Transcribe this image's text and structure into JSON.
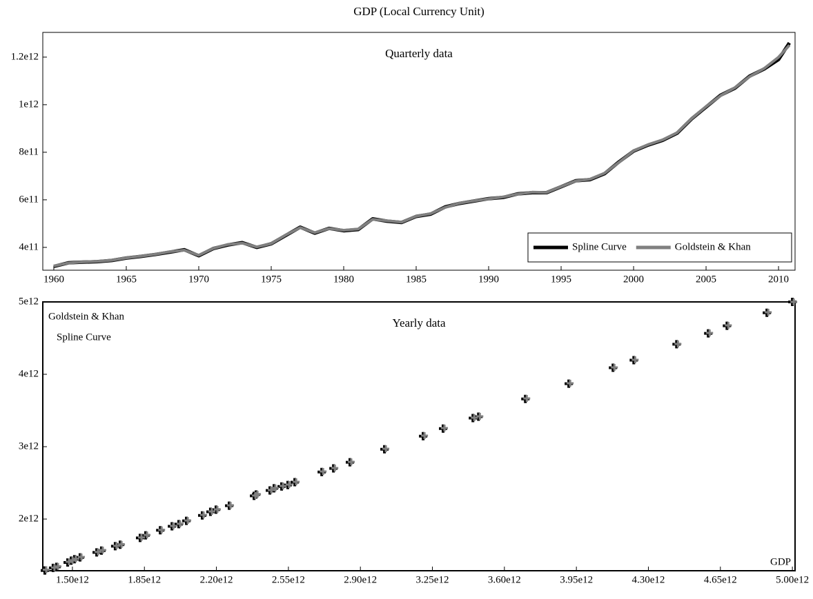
{
  "chart_data": [
    {
      "type": "line",
      "title": "GDP (Local Currency Unit)",
      "annotation": "Quarterly data",
      "x": [
        1960,
        1961,
        1962,
        1963,
        1964,
        1965,
        1966,
        1967,
        1968,
        1969,
        1970,
        1971,
        1972,
        1973,
        1974,
        1975,
        1976,
        1977,
        1978,
        1979,
        1980,
        1981,
        1982,
        1983,
        1984,
        1985,
        1986,
        1987,
        1988,
        1989,
        1990,
        1991,
        1992,
        1993,
        1994,
        1995,
        1996,
        1997,
        1998,
        1999,
        2000,
        2001,
        2002,
        2003,
        2004,
        2005,
        2006,
        2007,
        2008,
        2009,
        2010,
        2010.75
      ],
      "series": [
        {
          "name": "Spline Curve",
          "color": "#000000",
          "values": [
            320000000000.0,
            335000000000.0,
            338000000000.0,
            340000000000.0,
            345000000000.0,
            355000000000.0,
            362000000000.0,
            370000000000.0,
            380000000000.0,
            390000000000.0,
            365000000000.0,
            395000000000.0,
            410000000000.0,
            420000000000.0,
            400000000000.0,
            415000000000.0,
            450000000000.0,
            485000000000.0,
            460000000000.0,
            480000000000.0,
            470000000000.0,
            475000000000.0,
            520000000000.0,
            510000000000.0,
            505000000000.0,
            530000000000.0,
            540000000000.0,
            570000000000.0,
            585000000000.0,
            595000000000.0,
            605000000000.0,
            610000000000.0,
            625000000000.0,
            630000000000.0,
            630000000000.0,
            655000000000.0,
            680000000000.0,
            685000000000.0,
            710000000000.0,
            760000000000.0,
            805000000000.0,
            830000000000.0,
            850000000000.0,
            880000000000.0,
            940000000000.0,
            990000000000.0,
            1040000000000.0,
            1070000000000.0,
            1120000000000.0,
            1150000000000.0,
            1190000000000.0,
            1260000000000.0
          ]
        },
        {
          "name": "Goldstein & Khan",
          "color": "#808080",
          "values": [
            322000000000.0,
            334000000000.0,
            339000000000.0,
            341000000000.0,
            346000000000.0,
            356000000000.0,
            363000000000.0,
            371000000000.0,
            382000000000.0,
            388000000000.0,
            367000000000.0,
            396000000000.0,
            412000000000.0,
            418000000000.0,
            402000000000.0,
            416000000000.0,
            452000000000.0,
            483000000000.0,
            462000000000.0,
            479000000000.0,
            472000000000.0,
            477000000000.0,
            518000000000.0,
            512000000000.0,
            506000000000.0,
            531000000000.0,
            542000000000.0,
            568000000000.0,
            586000000000.0,
            596000000000.0,
            604000000000.0,
            612000000000.0,
            624000000000.0,
            632000000000.0,
            631000000000.0,
            656000000000.0,
            679000000000.0,
            687000000000.0,
            712000000000.0,
            758000000000.0,
            806000000000.0,
            832000000000.0,
            852000000000.0,
            882000000000.0,
            941000000000.0,
            992000000000.0,
            1038000000000.0,
            1072000000000.0,
            1118000000000.0,
            1152000000000.0,
            1200000000000.0,
            1250000000000.0
          ]
        }
      ],
      "xlim": [
        1959.24,
        2011.14
      ],
      "xticks": [
        1960,
        1965,
        1970,
        1975,
        1980,
        1985,
        1990,
        1995,
        2000,
        2005,
        2010
      ],
      "ylim": [
        304000000000.0,
        1304000000000.0
      ],
      "yticks": [
        {
          "value": 400000000000.0,
          "label": "4e11"
        },
        {
          "value": 600000000000.0,
          "label": "6e11"
        },
        {
          "value": 800000000000.0,
          "label": "8e11"
        },
        {
          "value": 1000000000000.0,
          "label": "1e12"
        },
        {
          "value": 1200000000000.0,
          "label": "1.2e12"
        }
      ],
      "legend": "lower right"
    },
    {
      "type": "scatter",
      "annotation": "Yearly data",
      "xlabel": "GDP",
      "x": [
        1366000000000.0,
        1406000000000.0,
        1423000000000.0,
        1477000000000.0,
        1494000000000.0,
        1510000000000.0,
        1537000000000.0,
        1618000000000.0,
        1641000000000.0,
        1708000000000.0,
        1732000000000.0,
        1829000000000.0,
        1856000000000.0,
        1927000000000.0,
        1984000000000.0,
        2017000000000.0,
        2054000000000.0,
        2131000000000.0,
        2171000000000.0,
        2198000000000.0,
        2262000000000.0,
        2383000000000.0,
        2393000000000.0,
        2460000000000.0,
        2480000000000.0,
        2517000000000.0,
        2547000000000.0,
        2581000000000.0,
        2712000000000.0,
        2769000000000.0,
        2849000000000.0,
        3017000000000.0,
        3205000000000.0,
        3302000000000.0,
        3447000000000.0,
        3474000000000.0,
        3702000000000.0,
        3913000000000.0,
        4128000000000.0,
        4229000000000.0,
        4437000000000.0,
        4591000000000.0,
        4682000000000.0,
        4876000000000.0,
        5000000000000.0
      ],
      "series": [
        {
          "name": "Goldstein & Khan",
          "color": "#808080",
          "values": [
            1300000000000.0,
            1330000000000.0,
            1345000000000.0,
            1410000000000.0,
            1430000000000.0,
            1450000000000.0,
            1476000000000.0,
            1545000000000.0,
            1572000000000.0,
            1630000000000.0,
            1650000000000.0,
            1745000000000.0,
            1780000000000.0,
            1850000000000.0,
            1905000000000.0,
            1935000000000.0,
            1980000000000.0,
            2057000000000.0,
            2105000000000.0,
            2133000000000.0,
            2190000000000.0,
            2325000000000.0,
            2343000000000.0,
            2400000000000.0,
            2430000000000.0,
            2457000000000.0,
            2476000000000.0,
            2514000000000.0,
            2657000000000.0,
            2705000000000.0,
            2790000000000.0,
            2971000000000.0,
            3152000000000.0,
            3257000000000.0,
            3400000000000.0,
            3419000000000.0,
            3667000000000.0,
            3876000000000.0,
            4095000000000.0,
            4200000000000.0,
            4419000000000.0,
            4571000000000.0,
            4676000000000.0,
            4857000000000.0,
            5000000000000.0
          ]
        },
        {
          "name": "Spline Curve",
          "color": "#000000",
          "values": [
            1290000000000.0,
            1325000000000.0,
            1340000000000.0,
            1400000000000.0,
            1425000000000.0,
            1445000000000.0,
            1470000000000.0,
            1540000000000.0,
            1565000000000.0,
            1625000000000.0,
            1645000000000.0,
            1740000000000.0,
            1775000000000.0,
            1845000000000.0,
            1900000000000.0,
            1930000000000.0,
            1975000000000.0,
            2050000000000.0,
            2100000000000.0,
            2130000000000.0,
            2185000000000.0,
            2320000000000.0,
            2340000000000.0,
            2395000000000.0,
            2425000000000.0,
            2450000000000.0,
            2470000000000.0,
            2510000000000.0,
            2650000000000.0,
            2700000000000.0,
            2785000000000.0,
            2965000000000.0,
            3145000000000.0,
            3250000000000.0,
            3395000000000.0,
            3415000000000.0,
            3660000000000.0,
            3870000000000.0,
            4090000000000.0,
            4195000000000.0,
            4415000000000.0,
            4565000000000.0,
            4670000000000.0,
            4850000000000.0,
            5000000000000.0
          ]
        }
      ],
      "xlim": [
        1356000000000.0,
        5013000000000.0
      ],
      "xticks": [
        {
          "value": 1500000000000.0,
          "label": "1.50e12"
        },
        {
          "value": 1850000000000.0,
          "label": "1.85e12"
        },
        {
          "value": 2200000000000.0,
          "label": "2.20e12"
        },
        {
          "value": 2550000000000.0,
          "label": "2.55e12"
        },
        {
          "value": 2900000000000.0,
          "label": "2.90e12"
        },
        {
          "value": 3250000000000.0,
          "label": "3.25e12"
        },
        {
          "value": 3600000000000.0,
          "label": "3.60e12"
        },
        {
          "value": 3950000000000.0,
          "label": "3.95e12"
        },
        {
          "value": 4300000000000.0,
          "label": "4.30e12"
        },
        {
          "value": 4650000000000.0,
          "label": "4.65e12"
        },
        {
          "value": 5000000000000.0,
          "label": "5.00e12"
        }
      ],
      "ylim": [
        1286000000000.0,
        5000000000000.0
      ],
      "yticks": [
        {
          "value": 2000000000000.0,
          "label": "2e12"
        },
        {
          "value": 3000000000000.0,
          "label": "3e12"
        },
        {
          "value": 4000000000000.0,
          "label": "4e12"
        },
        {
          "value": 5000000000000.0,
          "label": "5e12"
        }
      ],
      "legend": "upper left"
    }
  ]
}
